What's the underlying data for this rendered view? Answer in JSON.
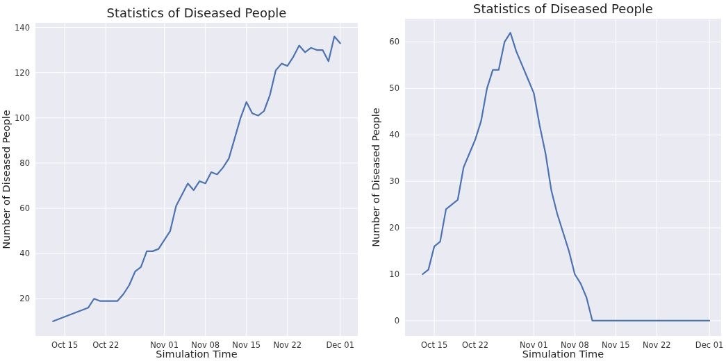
{
  "chart_data": [
    {
      "type": "line",
      "title": "Statistics of Diseased People",
      "xlabel": "Simulation Time",
      "ylabel": "Number of Diseased People",
      "x": [
        "--10-13",
        "--10-14",
        "--10-15",
        "--10-16",
        "--10-17",
        "--10-18",
        "--10-19",
        "--10-20",
        "--10-21",
        "--10-22",
        "--10-23",
        "--10-24",
        "--10-25",
        "--10-26",
        "--10-27",
        "--10-28",
        "--10-29",
        "--10-30",
        "--10-31",
        "--11-01",
        "--11-02",
        "--11-03",
        "--11-04",
        "--11-05",
        "--11-06",
        "--11-07",
        "--11-08",
        "--11-09",
        "--11-10",
        "--11-11",
        "--11-12",
        "--11-13",
        "--11-14",
        "--11-15",
        "--11-16",
        "--11-17",
        "--11-18",
        "--11-19",
        "--11-20",
        "--11-21",
        "--11-22",
        "--11-23",
        "--11-24",
        "--11-25",
        "--11-26",
        "--11-27",
        "--11-28",
        "--11-29",
        "--11-30",
        "--12-01"
      ],
      "series": [
        {
          "color": "#4c72b0",
          "values": [
            10,
            11,
            12,
            13,
            14,
            15,
            16,
            20,
            19,
            19,
            19,
            19,
            22,
            26,
            32,
            34,
            41,
            41,
            42,
            46,
            50,
            61,
            66,
            71,
            68,
            72,
            71,
            76,
            75,
            78,
            82,
            91,
            100,
            107,
            102,
            101,
            103,
            110,
            121,
            124,
            123,
            127,
            132,
            129,
            131,
            130,
            130,
            125,
            136,
            133
          ]
        }
      ],
      "xlim": [
        "--10-10",
        "--12-04"
      ],
      "ylim": [
        3.5,
        142
      ],
      "xticks": [
        {
          "value": "--10-15",
          "label": "Oct 15"
        },
        {
          "value": "--10-22",
          "label": "Oct 22"
        },
        {
          "value": "--11-01",
          "label": "Nov 01"
        },
        {
          "value": "--11-08",
          "label": "Nov 08"
        },
        {
          "value": "--11-15",
          "label": "Nov 15"
        },
        {
          "value": "--11-22",
          "label": "Nov 22"
        },
        {
          "value": "--12-01",
          "label": "Dec 01"
        }
      ],
      "yticks": [
        20,
        40,
        60,
        80,
        100,
        120,
        140
      ],
      "grid": true,
      "line_style": "solid"
    },
    {
      "type": "line",
      "title": "Statistics of Diseased People",
      "xlabel": "Simulation Time",
      "ylabel": "Number of Diseased People",
      "x": [
        "--10-13",
        "--10-14",
        "--10-15",
        "--10-16",
        "--10-17",
        "--10-18",
        "--10-19",
        "--10-20",
        "--10-21",
        "--10-22",
        "--10-23",
        "--10-24",
        "--10-25",
        "--10-26",
        "--10-27",
        "--10-28",
        "--10-29",
        "--10-30",
        "--10-31",
        "--11-01",
        "--11-02",
        "--11-03",
        "--11-04",
        "--11-05",
        "--11-06",
        "--11-07",
        "--11-08",
        "--11-09",
        "--11-10",
        "--11-11",
        "--11-12",
        "--11-13",
        "--11-14",
        "--11-15",
        "--11-16",
        "--11-17",
        "--11-18",
        "--11-19",
        "--11-20",
        "--11-21",
        "--11-22",
        "--11-23",
        "--11-24",
        "--11-25",
        "--11-26",
        "--11-27",
        "--11-28",
        "--11-29",
        "--11-30",
        "--12-01"
      ],
      "series": [
        {
          "color": "#4c72b0",
          "values": [
            10,
            11,
            16,
            17,
            24,
            25,
            26,
            33,
            36,
            39,
            43,
            50,
            54,
            54,
            60,
            62,
            58,
            55,
            52,
            49,
            42,
            36,
            28,
            23,
            19,
            15,
            10,
            8,
            5,
            0,
            0,
            0,
            0,
            0,
            0,
            0,
            0,
            0,
            0,
            0,
            0,
            0,
            0,
            0,
            0,
            0,
            0,
            0,
            0,
            0
          ]
        }
      ],
      "xlim": [
        "--10-10",
        "--12-03"
      ],
      "ylim": [
        -3.3,
        65
      ],
      "xticks": [
        {
          "value": "--10-15",
          "label": "Oct 15"
        },
        {
          "value": "--10-22",
          "label": "Oct 22"
        },
        {
          "value": "--11-01",
          "label": "Nov 01"
        },
        {
          "value": "--11-08",
          "label": "Nov 08"
        },
        {
          "value": "--11-15",
          "label": "Nov 15"
        },
        {
          "value": "--11-22",
          "label": "Nov 22"
        },
        {
          "value": "--12-01",
          "label": "Dec 01"
        }
      ],
      "yticks": [
        0,
        10,
        20,
        30,
        40,
        50,
        60
      ],
      "grid": true,
      "line_style": "solid"
    }
  ]
}
